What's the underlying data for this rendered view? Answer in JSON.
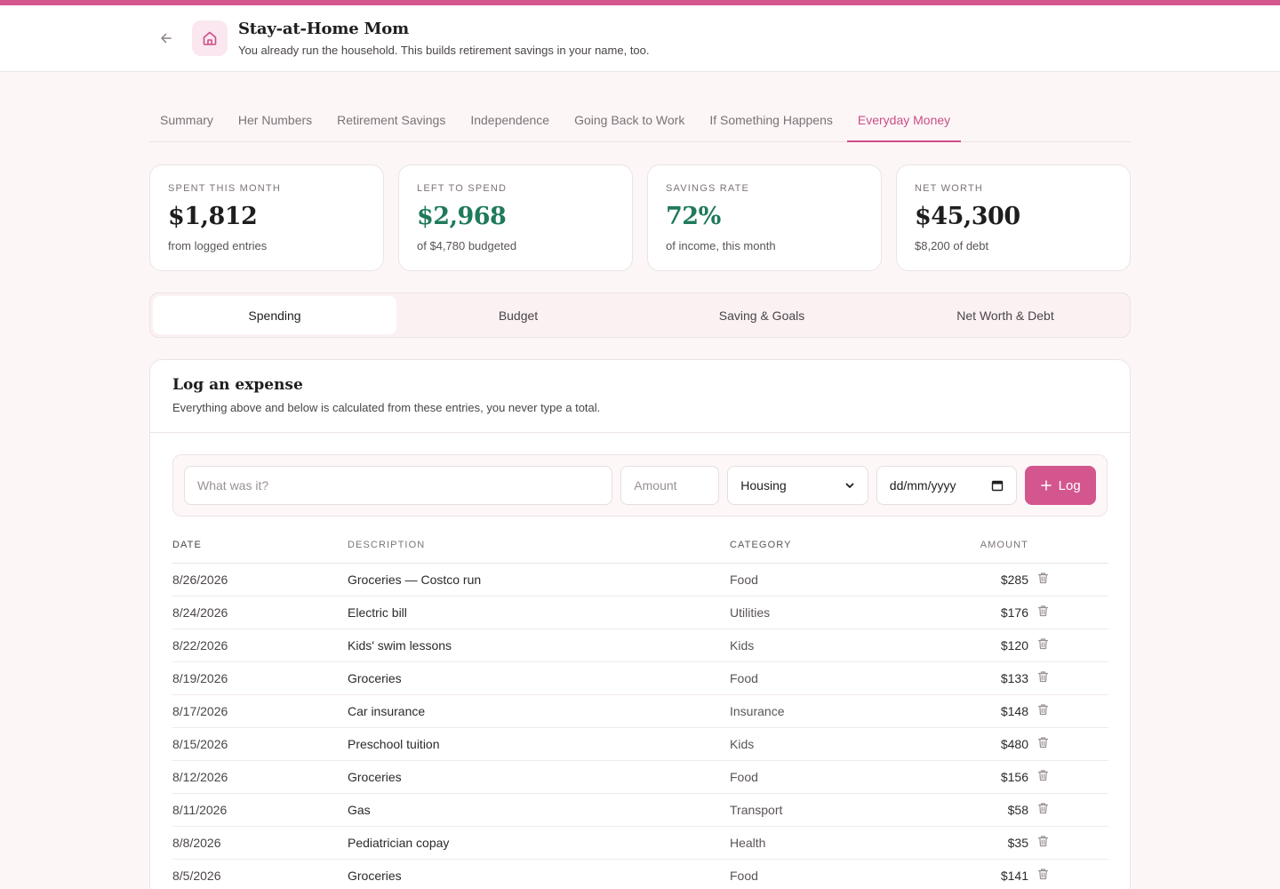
{
  "header": {
    "title": "Stay-at-Home Mom",
    "subtitle": "You already run the household. This builds retirement savings in your name, too."
  },
  "tabs": [
    {
      "label": "Summary",
      "active": false
    },
    {
      "label": "Her Numbers",
      "active": false
    },
    {
      "label": "Retirement Savings",
      "active": false
    },
    {
      "label": "Independence",
      "active": false
    },
    {
      "label": "Going Back to Work",
      "active": false
    },
    {
      "label": "If Something Happens",
      "active": false
    },
    {
      "label": "Everyday Money",
      "active": true
    }
  ],
  "cards": [
    {
      "label": "SPENT THIS MONTH",
      "value": "$1,812",
      "sub": "from logged entries"
    },
    {
      "label": "LEFT TO SPEND",
      "value": "$2,968",
      "sub": "of $4,780 budgeted"
    },
    {
      "label": "SAVINGS RATE",
      "value": "72%",
      "sub": "of income, this month"
    },
    {
      "label": "NET WORTH",
      "value": "$45,300",
      "sub": "$8,200 of debt"
    }
  ],
  "segments": [
    "Spending",
    "Budget",
    "Saving & Goals",
    "Net Worth & Debt"
  ],
  "panel": {
    "title": "Log an expense",
    "subtitle": "Everything above and below is calculated from these entries, you never type a total."
  },
  "form": {
    "desc_placeholder": "What was it?",
    "amount_placeholder": "Amount",
    "category_value": "Housing",
    "date_placeholder": "dd/mm/yyyy",
    "log_label": "Log"
  },
  "table": {
    "headers": {
      "date": "DATE",
      "description": "DESCRIPTION",
      "category": "CATEGORY",
      "amount": "AMOUNT"
    },
    "rows": [
      {
        "date": "8/26/2026",
        "description": "Groceries — Costco run",
        "category": "Food",
        "amount": "$285"
      },
      {
        "date": "8/24/2026",
        "description": "Electric bill",
        "category": "Utilities",
        "amount": "$176"
      },
      {
        "date": "8/22/2026",
        "description": "Kids' swim lessons",
        "category": "Kids",
        "amount": "$120"
      },
      {
        "date": "8/19/2026",
        "description": "Groceries",
        "category": "Food",
        "amount": "$133"
      },
      {
        "date": "8/17/2026",
        "description": "Car insurance",
        "category": "Insurance",
        "amount": "$148"
      },
      {
        "date": "8/15/2026",
        "description": "Preschool tuition",
        "category": "Kids",
        "amount": "$480"
      },
      {
        "date": "8/12/2026",
        "description": "Groceries",
        "category": "Food",
        "amount": "$156"
      },
      {
        "date": "8/11/2026",
        "description": "Gas",
        "category": "Transport",
        "amount": "$58"
      },
      {
        "date": "8/8/2026",
        "description": "Pediatrician copay",
        "category": "Health",
        "amount": "$35"
      },
      {
        "date": "8/5/2026",
        "description": "Groceries",
        "category": "Food",
        "amount": "$141"
      }
    ]
  },
  "colors": {
    "accent": "#d4568e",
    "positive": "#1f7a5a"
  }
}
